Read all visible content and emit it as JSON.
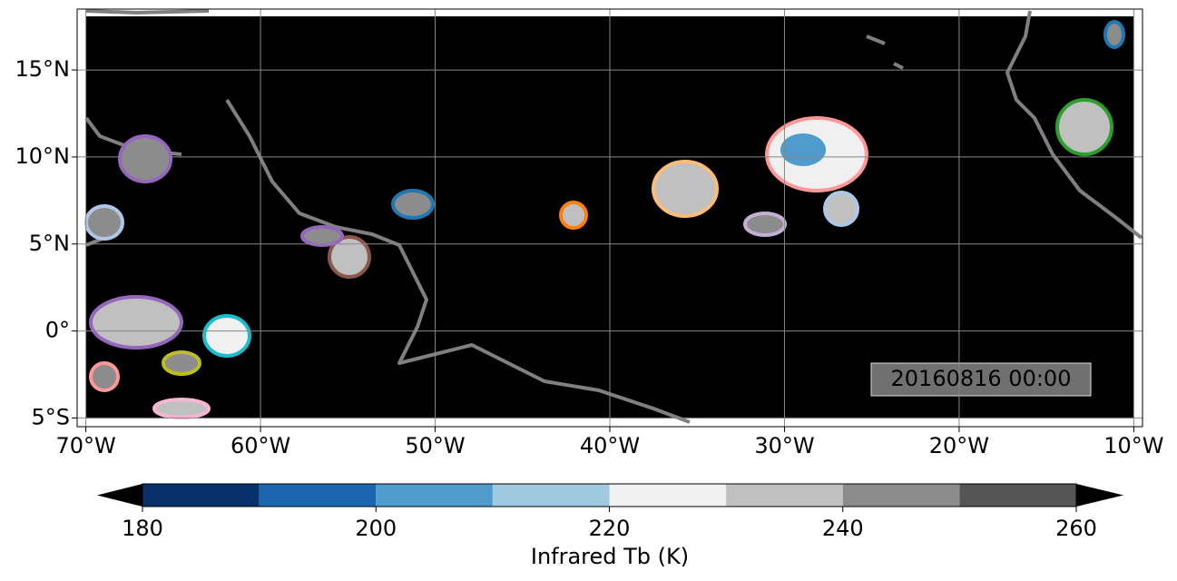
{
  "map": {
    "xlim": [
      -70.5,
      -9.5
    ],
    "ylim": [
      -5.5,
      18.5
    ],
    "xticks": [
      {
        "value": -70,
        "label": "70°W"
      },
      {
        "value": -60,
        "label": "60°W"
      },
      {
        "value": -50,
        "label": "50°W"
      },
      {
        "value": -40,
        "label": "40°W"
      },
      {
        "value": -30,
        "label": "30°W"
      },
      {
        "value": -20,
        "label": "20°W"
      },
      {
        "value": -10,
        "label": "10°W"
      }
    ],
    "yticks": [
      {
        "value": -5,
        "label": "5°S"
      },
      {
        "value": 0,
        "label": "0°"
      },
      {
        "value": 5,
        "label": "5°N"
      },
      {
        "value": 10,
        "label": "10°N"
      },
      {
        "value": 15,
        "label": "15°N"
      }
    ],
    "grid": true,
    "timestamp": "20160816 00:00"
  },
  "colorbar": {
    "label": "Infrared Tb (K)",
    "levels": [
      180,
      190,
      200,
      210,
      220,
      230,
      240,
      250,
      260
    ],
    "colors": [
      "#08306b",
      "#1c66ad",
      "#4f9bcb",
      "#9fc9df",
      "#f0f0f0",
      "#c0c0c0",
      "#8c8c8c",
      "#555555"
    ],
    "under_color": "#000000",
    "over_color": "#000000",
    "ticks": [
      180,
      200,
      220,
      240,
      260
    ]
  }
}
